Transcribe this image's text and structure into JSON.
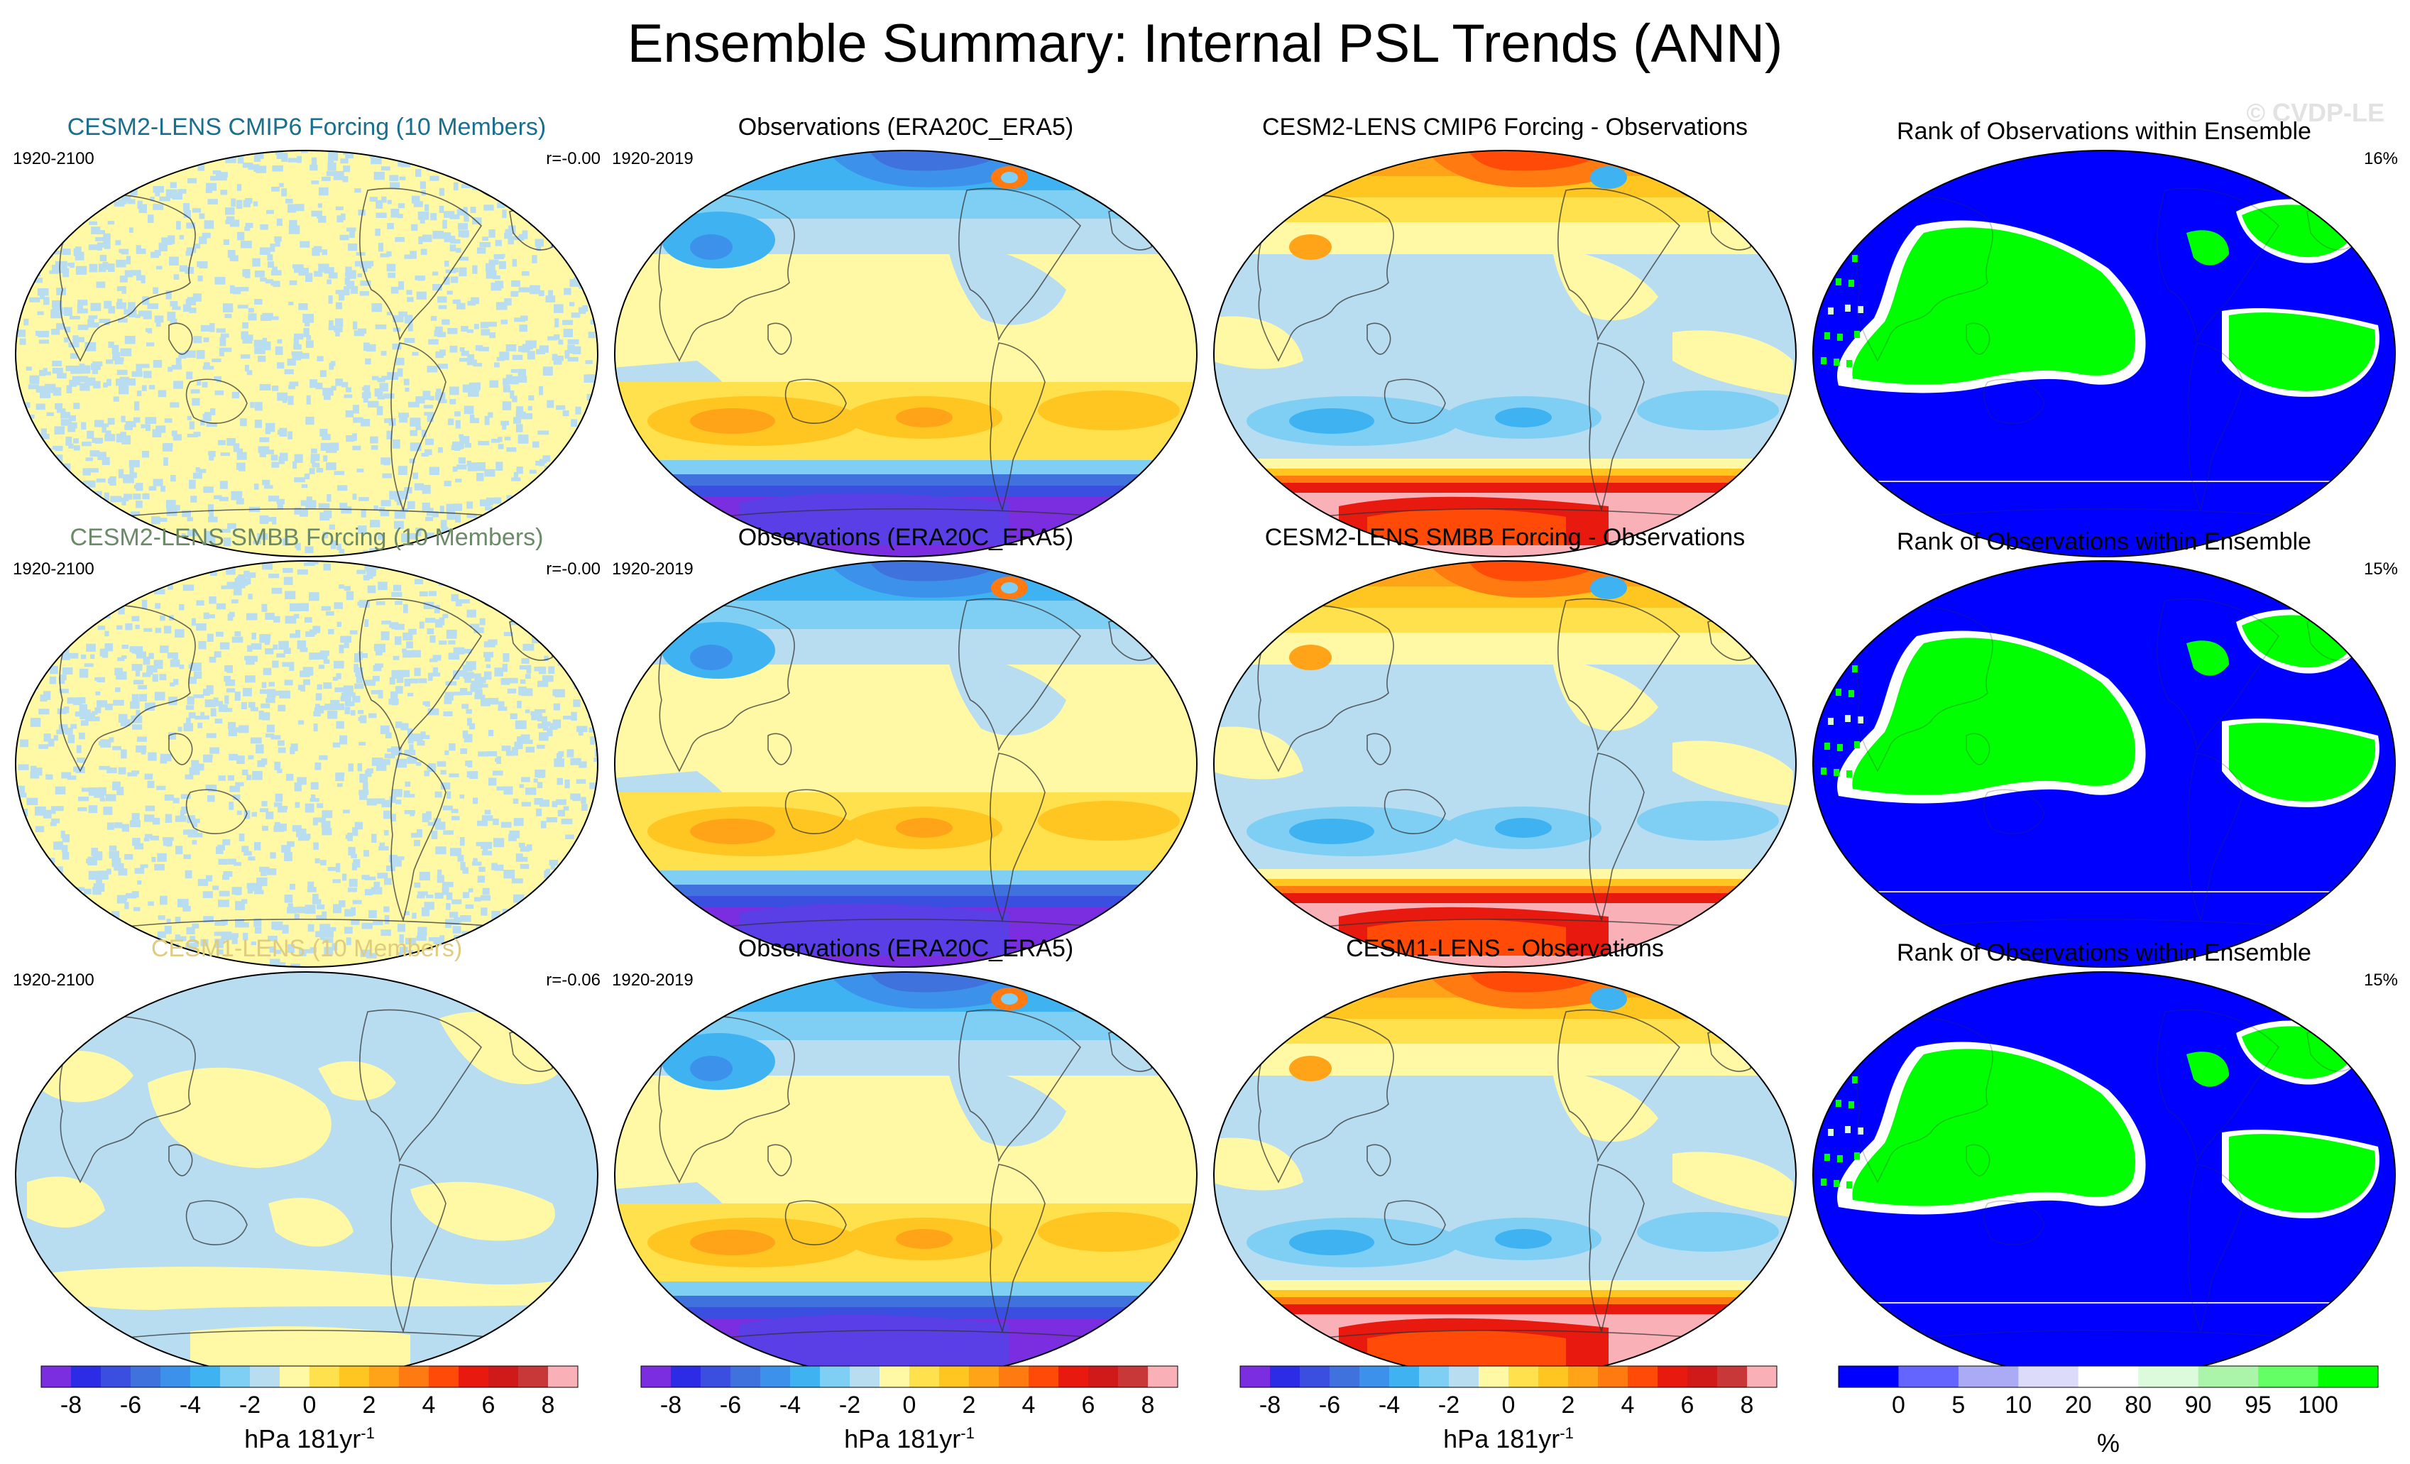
{
  "title": "Ensemble Summary: Internal PSL Trends (ANN)",
  "watermark": "© CVDP-LE",
  "rows": [
    {
      "model_title": "CESM2-LENS CMIP6 Forcing (10 Members)",
      "model_title_color": "#1a6f8f",
      "model_years": "1920-2100",
      "model_corr": "r=-0.00",
      "obs_title": "Observations (ERA20C_ERA5)",
      "obs_years": "1920-2019",
      "diff_title": "CESM2-LENS CMIP6 Forcing - Observations",
      "rank_title": "Rank of Observations within Ensemble",
      "rank_pct": "16%"
    },
    {
      "model_title": "CESM2-LENS SMBB Forcing (10 Members)",
      "model_title_color": "#6b8a68",
      "model_years": "1920-2100",
      "model_corr": "r=-0.00",
      "obs_title": "Observations (ERA20C_ERA5)",
      "obs_years": "1920-2019",
      "diff_title": "CESM2-LENS SMBB Forcing - Observations",
      "rank_title": "Rank of Observations within Ensemble",
      "rank_pct": "15%"
    },
    {
      "model_title": "CESM1-LENS (10 Members)",
      "model_title_color": "#e0cc80",
      "model_years": "1920-2100",
      "model_corr": "r=-0.06",
      "obs_title": "Observations (ERA20C_ERA5)",
      "obs_years": "1920-2019",
      "diff_title": "CESM1-LENS - Observations",
      "rank_title": "Rank of Observations within Ensemble",
      "rank_pct": "15%"
    }
  ],
  "psl_colorbar": {
    "colors": [
      "#7b2de0",
      "#2c2ce6",
      "#3a4fe0",
      "#3f72dd",
      "#3c92ea",
      "#3fb2f2",
      "#7fcff5",
      "#b8dcf0",
      "#fff9a6",
      "#ffe04d",
      "#ffc520",
      "#ffa319",
      "#ff7a10",
      "#ff4a08",
      "#e81a10",
      "#d01a1a",
      "#c83838",
      "#f9b0b6"
    ],
    "ticks": [
      "-8",
      "-6",
      "-4",
      "-2",
      "0",
      "2",
      "4",
      "6",
      "8"
    ],
    "label": "hPa 181yr",
    "label_sup": "-1"
  },
  "rank_colorbar": {
    "colors": [
      "#0000ff",
      "#6464ff",
      "#aaaaf5",
      "#dcdcfa",
      "#ffffff",
      "#dcfadc",
      "#aaf5aa",
      "#64ff64",
      "#00ff00"
    ],
    "ticks": [
      "0",
      "5",
      "10",
      "20",
      "80",
      "90",
      "95",
      "100"
    ],
    "label": "%"
  }
}
